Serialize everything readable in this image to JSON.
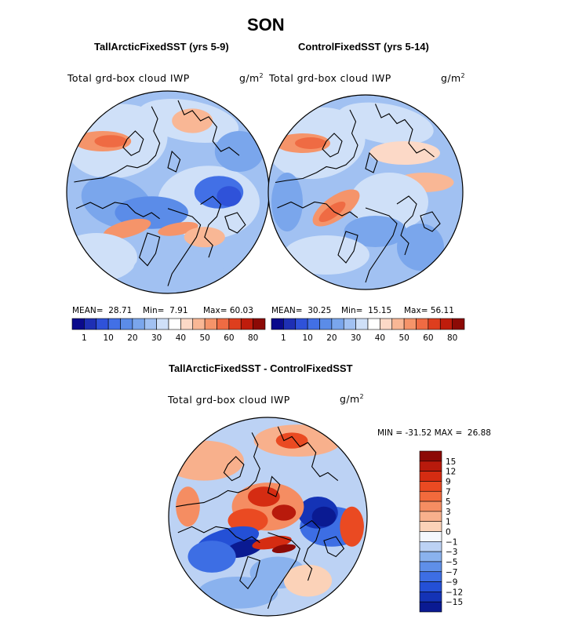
{
  "figure": {
    "title": "SON"
  },
  "panels": [
    {
      "id": "tall",
      "subtitle": "TallArcticFixedSST (yrs 5-9)",
      "variable": "Total grd-box cloud IWP",
      "units": "g/m",
      "units_exp": "2",
      "mean_label": "MEAN=",
      "mean": "28.71",
      "min_label": "Min=",
      "min": "7.91",
      "max_label": "Max=",
      "max": "60.03"
    },
    {
      "id": "control",
      "subtitle": "ControlFixedSST (yrs 5-14)",
      "variable": "Total grd-box cloud IWP",
      "units": "g/m",
      "units_exp": "2",
      "mean_label": "MEAN=",
      "mean": "30.25",
      "min_label": "Min=",
      "min": "15.15",
      "max_label": "Max=",
      "max": "56.11"
    },
    {
      "id": "diff",
      "subtitle": "TallArcticFixedSST - ControlFixedSST",
      "variable": "Total grd-box cloud IWP",
      "units": "g/m",
      "units_exp": "2",
      "minmax_text": "MIN = -31.52 MAX =  26.88"
    }
  ],
  "chart_data": [
    {
      "type": "heatmap",
      "projection": "north polar stereographic",
      "title": "TallArcticFixedSST (yrs 5-9)",
      "variable": "Total grd-box cloud IWP",
      "units": "g/m^2",
      "mean": 28.71,
      "min": 7.91,
      "max": 60.03,
      "colorbar_levels": [
        1,
        5,
        10,
        15,
        20,
        25,
        30,
        35,
        40,
        45,
        50,
        55,
        60,
        70,
        80
      ],
      "colorbar_tick_labels": [
        "1",
        "10",
        "20",
        "30",
        "40",
        "50",
        "60",
        "80"
      ],
      "colorbar_colors": [
        "#0a0a8c",
        "#1e2fb4",
        "#2f52d9",
        "#4270e6",
        "#5b8ce8",
        "#7aa6ec",
        "#a1c1f2",
        "#cfe0f8",
        "#ffffff",
        "#fcd9c7",
        "#f9b795",
        "#f5946a",
        "#ef6b43",
        "#de3e1e",
        "#bf1c0c",
        "#8c0a06"
      ]
    },
    {
      "type": "heatmap",
      "projection": "north polar stereographic",
      "title": "ControlFixedSST (yrs 5-14)",
      "variable": "Total grd-box cloud IWP",
      "units": "g/m^2",
      "mean": 30.25,
      "min": 15.15,
      "max": 56.11,
      "colorbar_levels": [
        1,
        5,
        10,
        15,
        20,
        25,
        30,
        35,
        40,
        45,
        50,
        55,
        60,
        70,
        80
      ],
      "colorbar_tick_labels": [
        "1",
        "10",
        "20",
        "30",
        "40",
        "50",
        "60",
        "80"
      ],
      "colorbar_colors": [
        "#0a0a8c",
        "#1e2fb4",
        "#2f52d9",
        "#4270e6",
        "#5b8ce8",
        "#7aa6ec",
        "#a1c1f2",
        "#cfe0f8",
        "#ffffff",
        "#fcd9c7",
        "#f9b795",
        "#f5946a",
        "#ef6b43",
        "#de3e1e",
        "#bf1c0c",
        "#8c0a06"
      ]
    },
    {
      "type": "heatmap",
      "projection": "north polar stereographic",
      "title": "TallArcticFixedSST - ControlFixedSST",
      "variable": "Total grd-box cloud IWP",
      "units": "g/m^2",
      "min": -31.52,
      "max": 26.88,
      "colorbar_orientation": "vertical",
      "colorbar_tick_labels": [
        "15",
        "12",
        "9",
        "7",
        "5",
        "3",
        "1",
        "0",
        "−1",
        "−3",
        "−5",
        "−7",
        "−9",
        "−12",
        "−15"
      ],
      "colorbar_colors": [
        "#8c0a06",
        "#b81a0c",
        "#d52c12",
        "#ea4a22",
        "#f26a3c",
        "#f58d62",
        "#f8b08c",
        "#fbd2b8",
        "#f4f7fd",
        "#bcd2f4",
        "#8ab2ee",
        "#5f8fe8",
        "#3d6ee4",
        "#2450d6",
        "#1433b6",
        "#0a1a92"
      ]
    }
  ]
}
